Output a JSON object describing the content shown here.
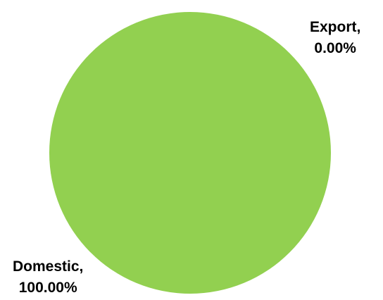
{
  "chart_data": {
    "type": "pie",
    "slices": [
      {
        "label": "Domestic",
        "value": 100.0,
        "percent_text": "100.00%",
        "color": "#92d050"
      },
      {
        "label": "Export",
        "value": 0.0,
        "percent_text": "0.00%",
        "color": "#4472c4"
      }
    ],
    "label_separator": ","
  }
}
